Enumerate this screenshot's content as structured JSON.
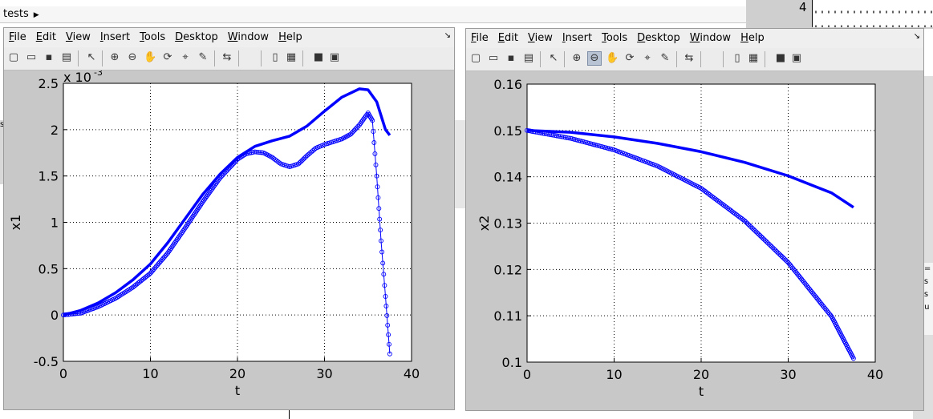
{
  "background": {
    "breadcrumb": "tests",
    "corner_number": "4",
    "fragments": [
      "se",
      "y=",
      "ys",
      "ys",
      "ou"
    ]
  },
  "menu_items": [
    "File",
    "Edit",
    "View",
    "Insert",
    "Tools",
    "Desktop",
    "Window",
    "Help"
  ],
  "toolbar_icons": [
    "new-figure-icon",
    "open-file-icon",
    "save-icon",
    "print-icon",
    "edit-plot-arrow-icon",
    "zoom-in-icon",
    "zoom-out-icon",
    "pan-hand-icon",
    "rotate-3d-icon",
    "data-cursor-icon",
    "brush-icon",
    "link-plot-icon",
    "colorbar-icon",
    "legend-icon",
    "hide-plot-tools-icon",
    "show-plot-tools-icon"
  ],
  "colors": {
    "series": "#0000ff",
    "figure_bg": "#c8c8c8",
    "axes_bg": "#ffffff"
  },
  "figures": [
    {
      "zoom_out_pressed": false,
      "chart_data": {
        "type": "line",
        "xlabel": "t",
        "ylabel": "x1",
        "exponent_label": "x 10",
        "exponent": "-3",
        "xlim": [
          0,
          40
        ],
        "ylim": [
          -0.5,
          2.5
        ],
        "xticks": [
          "0",
          "10",
          "20",
          "30",
          "40"
        ],
        "yticks": [
          "-0.5",
          "0",
          "0.5",
          "1",
          "1.5",
          "2",
          "2.5"
        ],
        "grid": true,
        "series": [
          {
            "style": "solid-dense",
            "x": [
              0,
              2,
              4,
              6,
              8,
              10,
              12,
              14,
              16,
              18,
              20,
              22,
              24,
              26,
              28,
              30,
              32,
              34,
              35,
              36,
              37,
              37.5
            ],
            "y": [
              0,
              0.05,
              0.13,
              0.24,
              0.38,
              0.55,
              0.78,
              1.04,
              1.3,
              1.52,
              1.7,
              1.82,
              1.88,
              1.93,
              2.04,
              2.2,
              2.35,
              2.44,
              2.43,
              2.3,
              2.0,
              1.94
            ]
          },
          {
            "style": "circle-markers",
            "x": [
              0,
              2,
              4,
              6,
              8,
              10,
              12,
              14,
              16,
              18,
              20,
              21,
              22,
              23,
              24,
              25,
              26,
              27,
              28,
              29,
              30,
              32,
              33,
              34,
              35,
              35.5,
              36,
              36.5,
              37,
              37.5
            ],
            "y": [
              0,
              0.02,
              0.09,
              0.18,
              0.3,
              0.45,
              0.67,
              0.94,
              1.22,
              1.48,
              1.68,
              1.74,
              1.76,
              1.75,
              1.7,
              1.63,
              1.6,
              1.63,
              1.72,
              1.8,
              1.84,
              1.9,
              1.95,
              2.05,
              2.18,
              2.1,
              1.5,
              0.8,
              0.2,
              -0.42
            ]
          }
        ]
      }
    },
    {
      "zoom_out_pressed": true,
      "chart_data": {
        "type": "line",
        "xlabel": "t",
        "ylabel": "x2",
        "xlim": [
          0,
          40
        ],
        "ylim": [
          0.1,
          0.16
        ],
        "xticks": [
          "0",
          "10",
          "20",
          "30",
          "40"
        ],
        "yticks": [
          "0.1",
          "0.11",
          "0.12",
          "0.13",
          "0.14",
          "0.15",
          "0.16"
        ],
        "grid": true,
        "series": [
          {
            "style": "solid-dense",
            "x": [
              0,
              5,
              10,
              15,
              20,
              25,
              30,
              35,
              37.5
            ],
            "y": [
              0.15,
              0.1496,
              0.1486,
              0.1472,
              0.1454,
              0.1431,
              0.1402,
              0.1365,
              0.1334
            ]
          },
          {
            "style": "circle-markers",
            "x": [
              0,
              5,
              10,
              15,
              20,
              25,
              30,
              35,
              37.5
            ],
            "y": [
              0.15,
              0.1483,
              0.1458,
              0.1423,
              0.1375,
              0.1305,
              0.1215,
              0.1098,
              0.1008
            ]
          }
        ]
      }
    }
  ]
}
